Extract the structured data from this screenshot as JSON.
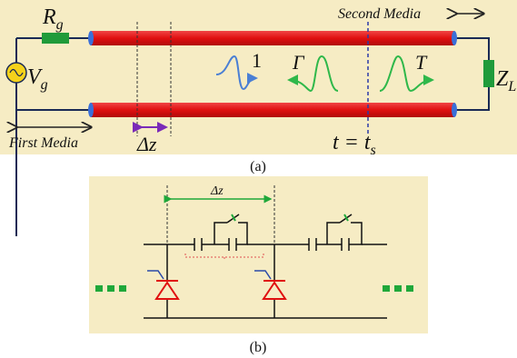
{
  "figure_a": {
    "source_label": "R",
    "source_label_sub": "g",
    "voltage_label": "V",
    "voltage_label_sub": "g",
    "load_label": "Z",
    "load_label_sub": "L",
    "first_media": "First Media",
    "second_media": "Second Media",
    "delta_z": "Δz",
    "incident_label": "1",
    "reflection_label": "Γ",
    "transmission_label": "T",
    "time_label_t": "t = t",
    "time_label_sub": "s",
    "caption": "(a)",
    "colors": {
      "background": "#f6ecc4",
      "line": "#e01010",
      "resistor": "#1f9b3a",
      "source": "#f5d21b",
      "incident_pulse": "#4a7fd4",
      "scattered_pulse": "#2fb84a",
      "marker": "#7a2ab8"
    }
  },
  "figure_b": {
    "delta_z": "Δz",
    "caption": "(b)",
    "colors": {
      "background": "#f6ecc4",
      "dots": "#1fa83a",
      "varactor": "#e01010",
      "bracket": "#e05050",
      "dimension": "#1fa83a",
      "arrow": "#1fa83a"
    }
  }
}
